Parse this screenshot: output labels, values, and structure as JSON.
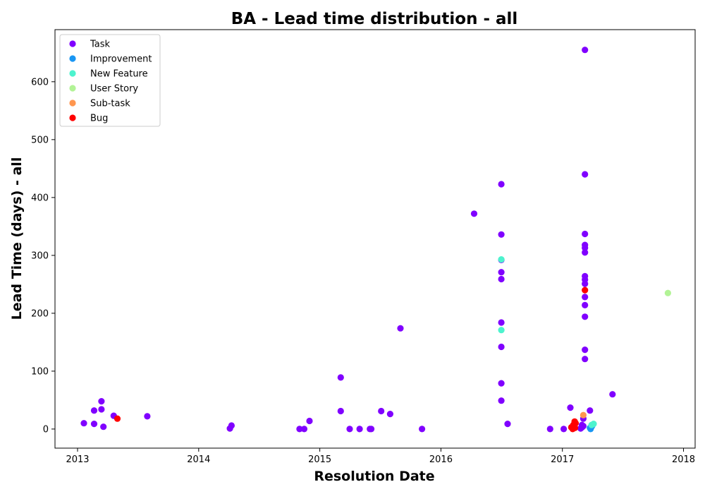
{
  "chart_data": {
    "type": "scatter",
    "title": "BA - Lead time distribution - all",
    "xlabel": "Resolution Date",
    "ylabel": "Lead Time (days) - all",
    "x_ticks": [
      "2013",
      "2014",
      "2015",
      "2016",
      "2017",
      "2018"
    ],
    "y_ticks": [
      0,
      100,
      200,
      300,
      400,
      500,
      600
    ],
    "xlim": [
      "2012-10-25",
      "2018-02-05"
    ],
    "ylim": [
      -33,
      690
    ],
    "grid": false,
    "legend": "top-left",
    "series": [
      {
        "name": "Task",
        "color": "#8000ff",
        "points": [
          [
            "2013-01-20",
            10
          ],
          [
            "2013-02-20",
            32
          ],
          [
            "2013-02-20",
            9
          ],
          [
            "2013-03-14",
            48
          ],
          [
            "2013-03-14",
            34
          ],
          [
            "2013-03-20",
            4
          ],
          [
            "2013-04-20",
            23
          ],
          [
            "2013-07-30",
            22
          ],
          [
            "2014-04-05",
            1
          ],
          [
            "2014-04-10",
            6
          ],
          [
            "2014-11-01",
            0
          ],
          [
            "2014-11-15",
            0
          ],
          [
            "2014-12-01",
            14
          ],
          [
            "2015-03-05",
            89
          ],
          [
            "2015-03-05",
            31
          ],
          [
            "2015-04-01",
            0
          ],
          [
            "2015-05-01",
            0
          ],
          [
            "2015-06-01",
            0
          ],
          [
            "2015-06-05",
            0
          ],
          [
            "2015-07-05",
            31
          ],
          [
            "2015-08-01",
            26
          ],
          [
            "2015-09-01",
            174
          ],
          [
            "2015-11-05",
            0
          ],
          [
            "2016-04-10",
            372
          ],
          [
            "2016-07-01",
            423
          ],
          [
            "2016-07-01",
            336
          ],
          [
            "2016-07-01",
            292
          ],
          [
            "2016-07-01",
            271
          ],
          [
            "2016-07-01",
            259
          ],
          [
            "2016-07-01",
            184
          ],
          [
            "2016-07-01",
            142
          ],
          [
            "2016-07-01",
            79
          ],
          [
            "2016-07-01",
            49
          ],
          [
            "2016-07-20",
            9
          ],
          [
            "2016-11-25",
            0
          ],
          [
            "2017-01-05",
            0
          ],
          [
            "2017-01-25",
            37
          ],
          [
            "2017-03-10",
            655
          ],
          [
            "2017-03-10",
            440
          ],
          [
            "2017-03-10",
            337
          ],
          [
            "2017-03-10",
            318
          ],
          [
            "2017-03-10",
            313
          ],
          [
            "2017-03-10",
            305
          ],
          [
            "2017-03-10",
            264
          ],
          [
            "2017-03-10",
            258
          ],
          [
            "2017-03-10",
            251
          ],
          [
            "2017-03-10",
            228
          ],
          [
            "2017-03-10",
            214
          ],
          [
            "2017-03-10",
            194
          ],
          [
            "2017-03-10",
            137
          ],
          [
            "2017-03-10",
            121
          ],
          [
            "2017-03-05",
            18
          ],
          [
            "2017-03-25",
            32
          ],
          [
            "2017-06-01",
            60
          ],
          [
            "2017-03-01",
            7
          ],
          [
            "2017-03-01",
            3
          ],
          [
            "2017-02-25",
            1
          ],
          [
            "2017-03-05",
            5
          ]
        ]
      },
      {
        "name": "Improvement",
        "color": "#1996f3",
        "points": [
          [
            "2017-03-25",
            2
          ],
          [
            "2017-03-27",
            0
          ],
          [
            "2017-03-30",
            4
          ],
          [
            "2017-04-01",
            6
          ]
        ]
      },
      {
        "name": "New Feature",
        "color": "#4df3ce",
        "points": [
          [
            "2016-07-01",
            293
          ],
          [
            "2016-07-01",
            171
          ],
          [
            "2017-04-05",
            9
          ],
          [
            "2017-03-30",
            7
          ]
        ]
      },
      {
        "name": "User Story",
        "color": "#b2f396",
        "points": [
          [
            "2017-11-15",
            235
          ]
        ]
      },
      {
        "name": "Sub-task",
        "color": "#ff964f",
        "points": [
          [
            "2017-03-05",
            24
          ]
        ]
      },
      {
        "name": "Bug",
        "color": "#ff0000",
        "points": [
          [
            "2013-05-01",
            18
          ],
          [
            "2017-03-10",
            240
          ],
          [
            "2017-01-28",
            3
          ],
          [
            "2017-02-01",
            0
          ],
          [
            "2017-02-03",
            7
          ],
          [
            "2017-02-05",
            5
          ],
          [
            "2017-02-07",
            13
          ],
          [
            "2017-02-08",
            2
          ],
          [
            "2017-02-10",
            10
          ],
          [
            "2017-02-02",
            1
          ],
          [
            "2017-02-06",
            9
          ]
        ]
      }
    ]
  }
}
